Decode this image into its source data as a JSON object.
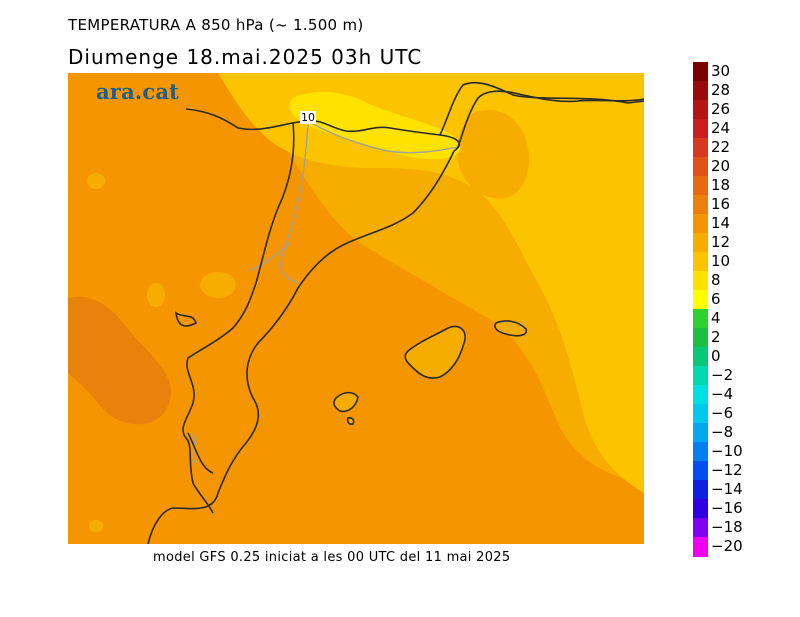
{
  "header": {
    "title": "TEMPERATURA A 850 hPa (~ 1.500 m)",
    "subtitle": "Diumenge  18.mai.2025 03h UTC"
  },
  "footer": {
    "model_text": "model GFS 0.25 iniciat a les 00 UTC del 11 mai 2025"
  },
  "logo": {
    "text": "ara.cat"
  },
  "map": {
    "contour_label": "10",
    "colors": {
      "band_16_18": "#e8820a",
      "band_14_16": "#f59600",
      "band_12_14": "#f7ad00",
      "band_10_12": "#fcc400",
      "band_8_10": "#ffe200",
      "coast": "#2a2a2a",
      "border": "#a0a0a0"
    }
  },
  "legend": {
    "labels": [
      "30",
      "28",
      "26",
      "24",
      "22",
      "20",
      "18",
      "16",
      "14",
      "12",
      "10",
      "8",
      "6",
      "4",
      "2",
      "0",
      "−2",
      "−4",
      "−6",
      "−8",
      "−10",
      "−12",
      "−14",
      "−16",
      "−18",
      "−20"
    ],
    "colors": [
      "#7a0000",
      "#9a0a0a",
      "#b51414",
      "#c81e1e",
      "#d83820",
      "#e05018",
      "#e86a10",
      "#ec800a",
      "#f59600",
      "#f7ad00",
      "#fcc400",
      "#ffe200",
      "#ffff00",
      "#2ed02e",
      "#1cc040",
      "#08c878",
      "#00d8b0",
      "#00e0e0",
      "#00c8f0",
      "#00a8f0",
      "#0080f0",
      "#0050f0",
      "#1020e0",
      "#3000e0",
      "#8000f0",
      "#f000f0"
    ]
  }
}
